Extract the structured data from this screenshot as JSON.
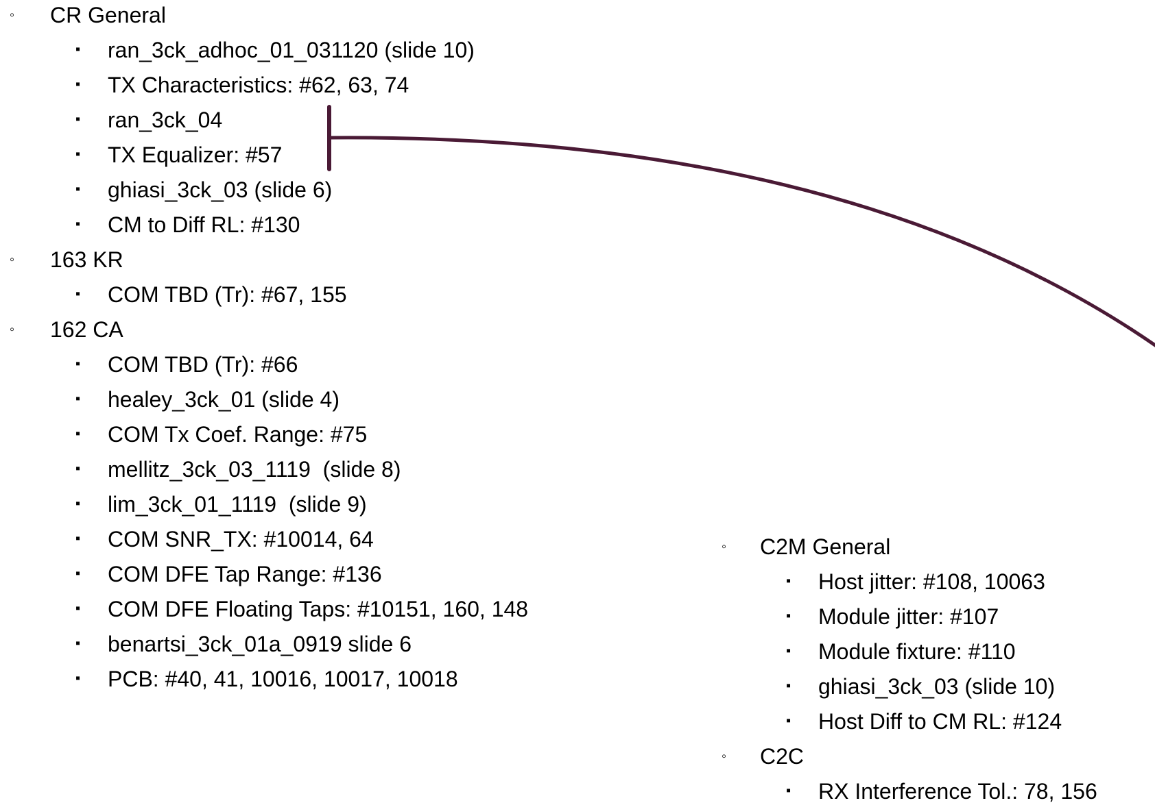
{
  "columns": [
    {
      "groups": [
        {
          "label": "CR General",
          "items": [
            "ran_3ck_adhoc_01_031120 (slide 10)",
            "TX Characteristics: #62, 63, 74",
            "ran_3ck_04",
            "TX Equalizer: #57",
            "ghiasi_3ck_03 (slide 6)",
            "CM to Diff RL: #130"
          ]
        },
        {
          "label": "163 KR",
          "items": [
            "COM TBD (Tr): #67, 155"
          ]
        },
        {
          "label": "162 CA",
          "items": [
            "COM TBD (Tr): #66",
            "healey_3ck_01 (slide 4)",
            "COM Tx Coef. Range: #75",
            "mellitz_3ck_03_1119  (slide 8)",
            "lim_3ck_01_1119  (slide 9)",
            "COM SNR_TX: #10014, 64",
            "COM DFE Tap Range: #136",
            "COM DFE Floating Taps: #10151, 160, 148",
            "benartsi_3ck_01a_0919 slide 6",
            "PCB: #40, 41, 10016, 10017, 10018"
          ]
        }
      ]
    },
    {
      "groups": [
        {
          "label": "C2M General",
          "items": [
            "Host jitter: #108, 10063",
            "Module jitter: #107",
            "Module fixture: #110",
            "ghiasi_3ck_03 (slide 10)",
            "Host Diff to CM RL: #124"
          ]
        },
        {
          "label": "C2C",
          "items": [
            "RX Interference Tol.: 78, 156"
          ]
        }
      ]
    }
  ]
}
